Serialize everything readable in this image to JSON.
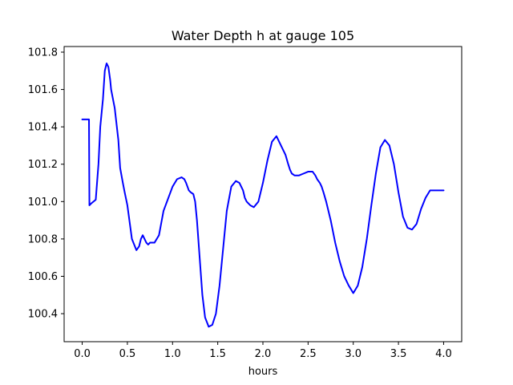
{
  "chart_data": {
    "type": "line",
    "title": "Water Depth h at gauge 105",
    "xlabel": "hours",
    "ylabel": "",
    "xlim": [
      -0.2,
      4.2
    ],
    "ylim": [
      100.25,
      101.83
    ],
    "xticks": [
      0.0,
      0.5,
      1.0,
      1.5,
      2.0,
      2.5,
      3.0,
      3.5,
      4.0
    ],
    "xtick_labels": [
      "0.0",
      "0.5",
      "1.0",
      "1.5",
      "2.0",
      "2.5",
      "3.0",
      "3.5",
      "4.0"
    ],
    "yticks": [
      100.4,
      100.6,
      100.8,
      101.0,
      101.2,
      101.4,
      101.6,
      101.8
    ],
    "ytick_labels": [
      "100.4",
      "100.6",
      "100.8",
      "101.0",
      "101.2",
      "101.4",
      "101.6",
      "101.8"
    ],
    "grid": false,
    "line_color": "#0000ff",
    "series": [
      {
        "x": [
          0.0,
          0.07,
          0.075,
          0.08,
          0.1,
          0.15,
          0.18,
          0.2,
          0.23,
          0.25,
          0.27,
          0.29,
          0.31,
          0.32,
          0.34,
          0.36,
          0.4,
          0.42,
          0.45,
          0.47,
          0.5,
          0.55,
          0.6,
          0.63,
          0.65,
          0.67,
          0.69,
          0.71,
          0.73,
          0.75,
          0.8,
          0.85,
          0.9,
          1.0,
          1.05,
          1.1,
          1.13,
          1.15,
          1.18,
          1.2,
          1.23,
          1.25,
          1.27,
          1.3,
          1.33,
          1.36,
          1.4,
          1.44,
          1.48,
          1.52,
          1.56,
          1.6,
          1.65,
          1.7,
          1.74,
          1.78,
          1.8,
          1.82,
          1.86,
          1.9,
          1.95,
          2.0,
          2.05,
          2.1,
          2.15,
          2.2,
          2.25,
          2.28,
          2.3,
          2.32,
          2.35,
          2.4,
          2.45,
          2.5,
          2.55,
          2.58,
          2.6,
          2.63,
          2.65,
          2.67,
          2.7,
          2.75,
          2.8,
          2.85,
          2.9,
          2.95,
          3.0,
          3.05,
          3.1,
          3.15,
          3.2,
          3.25,
          3.3,
          3.35,
          3.4,
          3.45,
          3.5,
          3.55,
          3.6,
          3.65,
          3.7,
          3.75,
          3.8,
          3.85,
          3.9,
          3.95,
          4.0
        ],
        "y": [
          101.44,
          101.44,
          101.44,
          100.98,
          100.99,
          101.01,
          101.2,
          101.4,
          101.55,
          101.7,
          101.74,
          101.72,
          101.65,
          101.6,
          101.55,
          101.5,
          101.33,
          101.18,
          101.1,
          101.05,
          100.98,
          100.8,
          100.74,
          100.76,
          100.8,
          100.82,
          100.8,
          100.78,
          100.77,
          100.78,
          100.78,
          100.82,
          100.95,
          101.08,
          101.12,
          101.13,
          101.12,
          101.1,
          101.06,
          101.05,
          101.04,
          101.0,
          100.9,
          100.7,
          100.5,
          100.38,
          100.33,
          100.34,
          100.4,
          100.55,
          100.75,
          100.95,
          101.08,
          101.11,
          101.1,
          101.06,
          101.02,
          101.0,
          100.98,
          100.97,
          101.0,
          101.1,
          101.22,
          101.32,
          101.35,
          101.3,
          101.25,
          101.2,
          101.17,
          101.15,
          101.14,
          101.14,
          101.15,
          101.16,
          101.16,
          101.14,
          101.12,
          101.1,
          101.08,
          101.05,
          101.0,
          100.9,
          100.78,
          100.68,
          100.6,
          100.55,
          100.51,
          100.55,
          100.65,
          100.8,
          100.98,
          101.15,
          101.29,
          101.33,
          101.3,
          101.2,
          101.05,
          100.92,
          100.86,
          100.85,
          100.88,
          100.96,
          101.02,
          101.06,
          101.06,
          101.06,
          101.06
        ]
      }
    ]
  }
}
